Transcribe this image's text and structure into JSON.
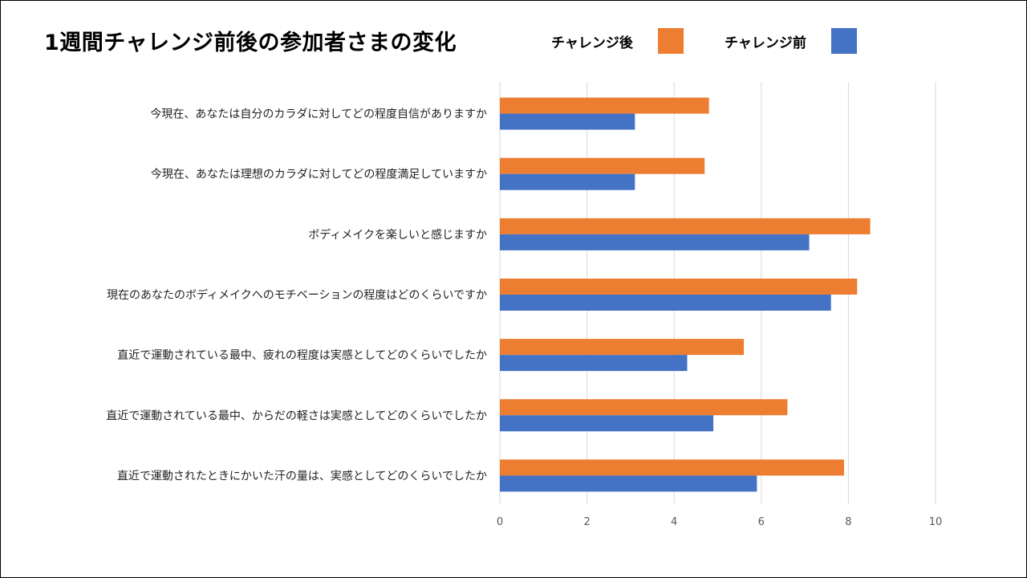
{
  "title": "1週間チャレンジ前後の参加者さまの変化",
  "legend": {
    "after": "チャレンジ後",
    "before": "チャレンジ前"
  },
  "chart_data": {
    "type": "bar",
    "orientation": "horizontal",
    "title": "1週間チャレンジ前後の参加者さまの変化",
    "categories": [
      "今現在、あなたは自分のカラダに対してどの程度自信がありますか",
      "今現在、あなたは理想のカラダに対してどの程度満足していますか",
      "ボディメイクを楽しいと感じますか",
      "現在のあなたのボディメイクへのモチベーションの程度はどのくらいですか",
      "直近で運動されている最中、疲れの程度は実感としてどのくらいでしたか",
      "直近で運動されている最中、からだの軽さは実感としてどのくらいでしたか",
      "直近で運動されたときにかいた汗の量は、実感としてどのくらいでしたか"
    ],
    "series": [
      {
        "name": "チャレンジ後",
        "color": "#ED7D31",
        "values": [
          4.8,
          4.7,
          8.5,
          8.2,
          5.6,
          6.6,
          7.9
        ]
      },
      {
        "name": "チャレンジ前",
        "color": "#4472C4",
        "values": [
          3.1,
          3.1,
          7.1,
          7.6,
          4.3,
          4.9,
          5.9
        ]
      }
    ],
    "xlim": [
      0,
      10
    ],
    "xticks": [
      "0",
      "2",
      "4",
      "6",
      "8",
      "10"
    ],
    "xtick_values": [
      0,
      2,
      4,
      6,
      8,
      10
    ],
    "grid": true,
    "legend_position": "top-right"
  }
}
